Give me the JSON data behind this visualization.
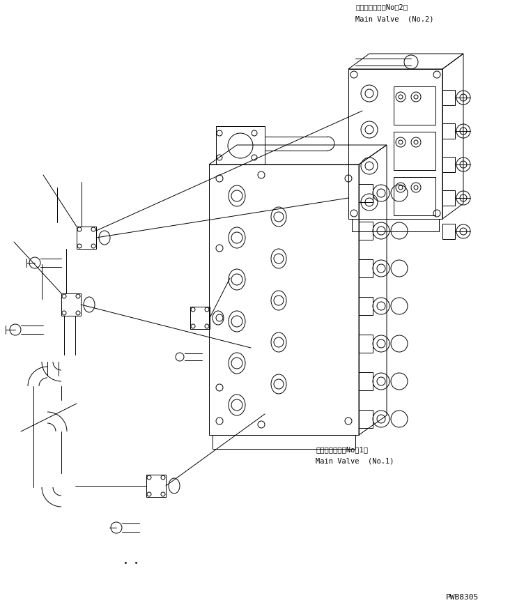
{
  "bg_color": "#ffffff",
  "line_color": "#000000",
  "lw": 0.7,
  "figsize": [
    7.42,
    8.79
  ],
  "dpi": 100,
  "label_no2_jp": "メインバルブ（No．2）",
  "label_no2_en": "Main Valve  (No.2)",
  "label_no1_jp": "メインバルブ（No．1）",
  "label_no1_en": "Main Valve  (No.1)",
  "label_code": "PWB8305",
  "font_size_label": 7.5,
  "font_size_code": 8
}
